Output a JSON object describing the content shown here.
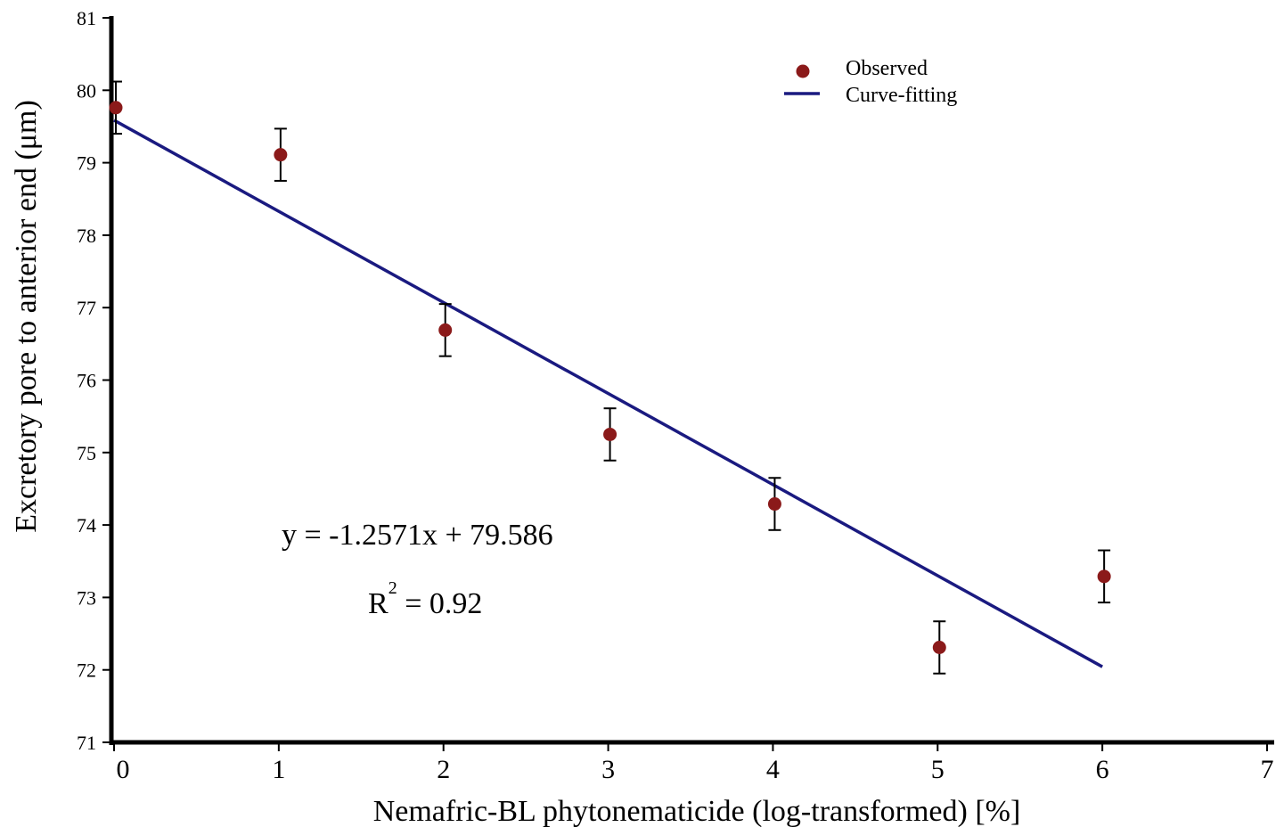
{
  "chart_data": {
    "type": "scatter",
    "xlabel": "Nemafric-BL phytonematicide (log-transformed) [%]",
    "ylabel": "Excretory pore to anterior end  (μm)",
    "xlim": [
      0,
      7
    ],
    "ylim": [
      71,
      81
    ],
    "xticks": [
      "0",
      "1",
      "2",
      "3",
      "4",
      "5",
      "6",
      "7"
    ],
    "yticks": [
      "71",
      "72",
      "73",
      "74",
      "75",
      "76",
      "77",
      "78",
      "79",
      "80",
      "81"
    ],
    "grid": false,
    "legend_position": "top-right",
    "series": [
      {
        "name": "Observed",
        "kind": "points",
        "color": "#8b1a1a",
        "points": [
          {
            "x": 0,
            "y": 79.76,
            "err": 0.36
          },
          {
            "x": 1,
            "y": 79.11,
            "err": 0.36
          },
          {
            "x": 2,
            "y": 76.69,
            "err": 0.36
          },
          {
            "x": 3,
            "y": 75.25,
            "err": 0.36
          },
          {
            "x": 4,
            "y": 74.29,
            "err": 0.36
          },
          {
            "x": 5,
            "y": 72.31,
            "err": 0.36
          },
          {
            "x": 6,
            "y": 73.29,
            "err": 0.36
          }
        ]
      },
      {
        "name": "Curve-fitting",
        "kind": "line",
        "color": "#1a1a80",
        "slope": -1.2571,
        "intercept": 79.586,
        "x_range": [
          0,
          6
        ]
      }
    ],
    "annotations": {
      "equation": "y = -1.2571x + 79.586",
      "r2_label": "R",
      "r2_sup": "2",
      "r2_value": " = 0.92"
    }
  }
}
